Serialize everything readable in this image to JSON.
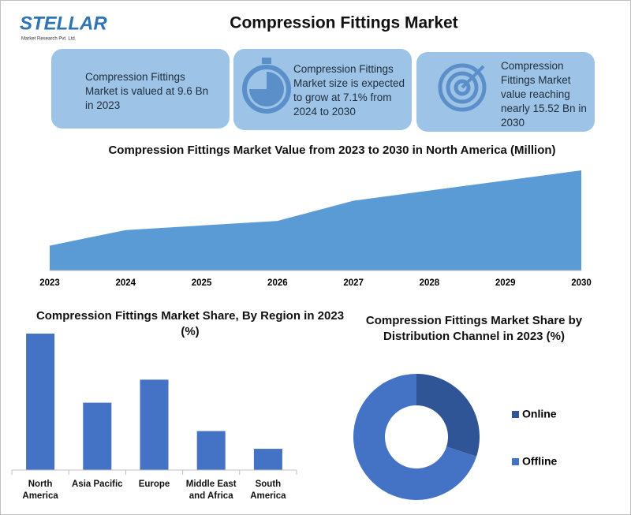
{
  "header": {
    "title": "Compression Fittings Market",
    "logo": "STELLAR",
    "logo_sub": "Market Research Pvt. Ltd."
  },
  "cards": [
    "Compression Fittings Market is valued at 9.6 Bn in 2023",
    "Compression Fittings Market size is expected to grow at 7.1% from 2024 to 2030",
    "Compression Fittings Market value reaching nearly 15.52 Bn in 2030"
  ],
  "chart_data": [
    {
      "type": "area",
      "title": "Compression Fittings Market Value from 2023 to 2030 in North America (Million)",
      "categories": [
        "2023",
        "2024",
        "2025",
        "2026",
        "2027",
        "2028",
        "2029",
        "2030"
      ],
      "values": [
        27,
        44,
        49,
        54,
        76,
        87,
        98,
        109
      ],
      "color": "#5b9bd5"
    },
    {
      "type": "bar",
      "title": "Compression Fittings Market Share, By Region in 2023 (%)",
      "categories": [
        "North America",
        "Asia Pacific",
        "Europe",
        "Middle East and Africa",
        "South America"
      ],
      "values": [
        38.5,
        19,
        25.5,
        11,
        6
      ],
      "color": "#4472c4"
    },
    {
      "type": "pie",
      "title": "Compression Fittings Market Share by Distribution Channel in 2023 (%)",
      "categories": [
        "Online",
        "Offline"
      ],
      "values": [
        30,
        70
      ],
      "colors": [
        "#2f5597",
        "#4472c4"
      ],
      "legend": "right"
    }
  ]
}
